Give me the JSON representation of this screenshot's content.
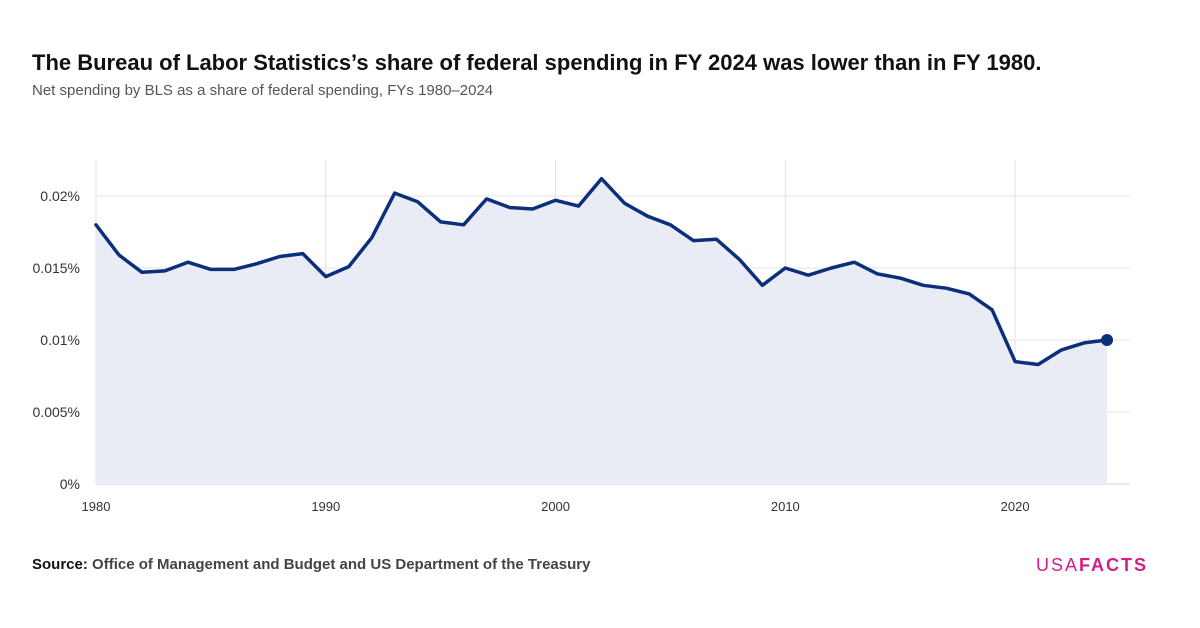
{
  "title": "The Bureau of Labor Statistics’s share of federal spending in FY 2024 was lower than in FY 1980.",
  "subtitle": "Net spending by BLS as a share of federal spending, FYs 1980–2024",
  "source_label": "Source:",
  "source_text": "Office of Management and Budget and US Department of the Treasury",
  "logo": {
    "part1": "USA",
    "part2": "FACTS"
  },
  "colors": {
    "line": "#0b2f7a",
    "area": "#e9ecf5",
    "grid": "#e3e3e3",
    "logo": "#d81b87"
  },
  "chart_data": {
    "type": "area",
    "title": "",
    "xlabel": "",
    "ylabel": "",
    "xlim": [
      1980,
      2025
    ],
    "ylim": [
      0,
      0.0225
    ],
    "grid": true,
    "x_ticks": [
      1980,
      1990,
      2000,
      2010,
      2020
    ],
    "x_tick_labels": [
      "1980",
      "1990",
      "2000",
      "2010",
      "2020"
    ],
    "y_ticks": [
      0,
      0.005,
      0.01,
      0.015,
      0.02
    ],
    "y_tick_labels": [
      "0%",
      "0.005%",
      "0.01%",
      "0.015%",
      "0.02%"
    ],
    "x": [
      1980,
      1981,
      1982,
      1983,
      1984,
      1985,
      1986,
      1987,
      1988,
      1989,
      1990,
      1991,
      1992,
      1993,
      1994,
      1995,
      1996,
      1997,
      1998,
      1999,
      2000,
      2001,
      2002,
      2003,
      2004,
      2005,
      2006,
      2007,
      2008,
      2009,
      2010,
      2011,
      2012,
      2013,
      2014,
      2015,
      2016,
      2017,
      2018,
      2019,
      2020,
      2021,
      2022,
      2023,
      2024
    ],
    "values": [
      0.018,
      0.0159,
      0.0147,
      0.0148,
      0.0154,
      0.0149,
      0.0149,
      0.0153,
      0.0158,
      0.016,
      0.0144,
      0.0151,
      0.0171,
      0.0202,
      0.0196,
      0.0182,
      0.018,
      0.0198,
      0.0192,
      0.0191,
      0.0197,
      0.0193,
      0.0212,
      0.0195,
      0.0186,
      0.018,
      0.0169,
      0.017,
      0.0156,
      0.0138,
      0.015,
      0.0145,
      0.015,
      0.0154,
      0.0146,
      0.0143,
      0.0138,
      0.0136,
      0.0132,
      0.0121,
      0.0085,
      0.0083,
      0.0093,
      0.0098,
      0.01
    ],
    "highlight_last_point": true
  }
}
